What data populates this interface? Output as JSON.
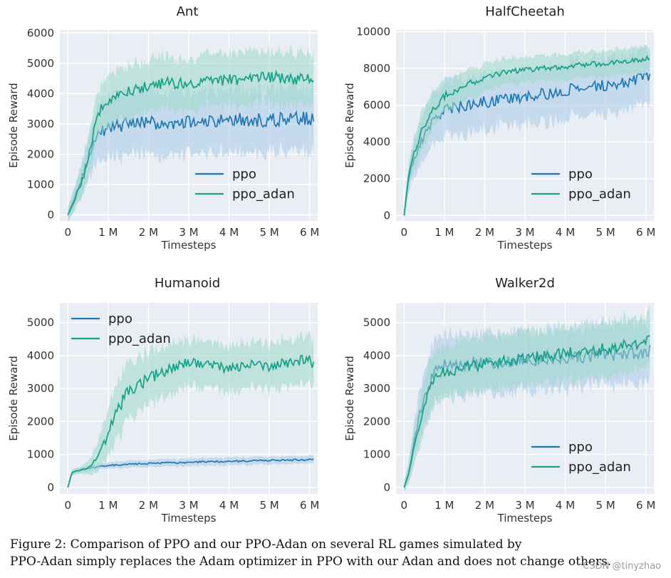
{
  "colors": {
    "ppo": "#1f77b4",
    "ppo_adan": "#17a085",
    "ppo_band": "#a9cbe6",
    "ppo_adan_band": "#9fd8c9"
  },
  "chart_data": [
    {
      "type": "line",
      "title": "Ant",
      "xlabel": "Timesteps",
      "ylabel": "Episode Reward",
      "xlim": [
        -0.2,
        6.2
      ],
      "ylim": [
        -200,
        6100
      ],
      "xticks": [
        0,
        1,
        2,
        3,
        4,
        5,
        6
      ],
      "xtick_labels": [
        "0",
        "1 M",
        "2 M",
        "3 M",
        "4 M",
        "5 M",
        "6 M"
      ],
      "yticks": [
        0,
        1000,
        2000,
        3000,
        4000,
        5000,
        6000
      ],
      "legend_position": "lower-right",
      "series": [
        {
          "name": "ppo",
          "x": [
            0,
            0.2,
            0.4,
            0.6,
            0.8,
            1.0,
            1.5,
            2.0,
            2.5,
            3.0,
            3.5,
            4.0,
            4.5,
            5.0,
            5.5,
            6.0,
            6.1
          ],
          "values": [
            0,
            700,
            1400,
            2300,
            2700,
            2850,
            3000,
            3050,
            3000,
            3050,
            3050,
            3100,
            3150,
            3100,
            3200,
            3200,
            3150
          ],
          "band": [
            250,
            400,
            600,
            800,
            900,
            1000,
            1050,
            1050,
            1050,
            1050,
            1050,
            1050,
            1050,
            1050,
            1050,
            1050,
            1050
          ]
        },
        {
          "name": "ppo_adan",
          "x": [
            0,
            0.2,
            0.4,
            0.6,
            0.8,
            1.0,
            1.5,
            2.0,
            2.5,
            3.0,
            3.5,
            4.0,
            4.5,
            5.0,
            5.5,
            6.0,
            6.1
          ],
          "values": [
            0,
            600,
            1300,
            2500,
            3500,
            3800,
            4100,
            4250,
            4350,
            4350,
            4400,
            4450,
            4500,
            4550,
            4500,
            4450,
            4400
          ],
          "band": [
            200,
            350,
            550,
            700,
            800,
            850,
            850,
            850,
            850,
            850,
            850,
            850,
            850,
            850,
            850,
            850,
            850
          ]
        }
      ]
    },
    {
      "type": "line",
      "title": "HalfCheetah",
      "xlabel": "Timesteps",
      "ylabel": "Episode Reward",
      "xlim": [
        -0.2,
        6.2
      ],
      "ylim": [
        -300,
        10100
      ],
      "xticks": [
        0,
        1,
        2,
        3,
        4,
        5,
        6
      ],
      "xtick_labels": [
        "0",
        "1 M",
        "2 M",
        "3 M",
        "4 M",
        "5 M",
        "6 M"
      ],
      "yticks": [
        0,
        2000,
        4000,
        6000,
        8000,
        10000
      ],
      "legend_position": "lower-right",
      "series": [
        {
          "name": "ppo",
          "x": [
            0,
            0.1,
            0.2,
            0.4,
            0.6,
            0.8,
            1.0,
            1.5,
            2.0,
            2.5,
            3.0,
            3.5,
            4.0,
            4.5,
            5.0,
            5.5,
            6.0,
            6.1
          ],
          "values": [
            0,
            1800,
            2800,
            3900,
            4800,
            5400,
            5700,
            6000,
            6200,
            6300,
            6500,
            6600,
            6800,
            7000,
            7100,
            7300,
            7500,
            7700
          ],
          "band": [
            300,
            600,
            900,
            1200,
            1300,
            1400,
            1500,
            1500,
            1500,
            1500,
            1500,
            1500,
            1500,
            1500,
            1500,
            1500,
            1500,
            1500
          ]
        },
        {
          "name": "ppo_adan",
          "x": [
            0,
            0.1,
            0.2,
            0.4,
            0.6,
            0.8,
            1.0,
            1.5,
            2.0,
            2.5,
            3.0,
            3.5,
            4.0,
            4.5,
            5.0,
            5.5,
            6.0,
            6.1
          ],
          "values": [
            0,
            2000,
            3100,
            4400,
            5300,
            6000,
            6500,
            7100,
            7500,
            7800,
            7900,
            8000,
            8100,
            8200,
            8300,
            8400,
            8500,
            8600
          ],
          "band": [
            250,
            500,
            800,
            1000,
            1000,
            1000,
            900,
            800,
            750,
            700,
            700,
            700,
            700,
            700,
            700,
            700,
            700,
            700
          ]
        }
      ]
    },
    {
      "type": "line",
      "title": "Humanoid",
      "xlabel": "Timesteps",
      "ylabel": "Episode Reward",
      "xlim": [
        -0.2,
        6.2
      ],
      "ylim": [
        -200,
        5600
      ],
      "xticks": [
        0,
        1,
        2,
        3,
        4,
        5,
        6
      ],
      "xtick_labels": [
        "0",
        "1 M",
        "2 M",
        "3 M",
        "4 M",
        "5 M",
        "6 M"
      ],
      "yticks": [
        0,
        1000,
        2000,
        3000,
        4000,
        5000
      ],
      "legend_position": "upper-left",
      "series": [
        {
          "name": "ppo",
          "x": [
            0,
            0.1,
            0.3,
            0.5,
            1.0,
            1.5,
            2.0,
            2.5,
            3.0,
            3.5,
            4.0,
            4.5,
            5.0,
            5.5,
            6.0,
            6.1
          ],
          "values": [
            0,
            450,
            530,
            580,
            660,
            700,
            720,
            740,
            760,
            780,
            790,
            800,
            820,
            830,
            840,
            850
          ],
          "band": [
            50,
            80,
            80,
            80,
            100,
            100,
            110,
            110,
            120,
            120,
            120,
            120,
            120,
            120,
            120,
            120
          ]
        },
        {
          "name": "ppo_adan",
          "x": [
            0,
            0.1,
            0.3,
            0.5,
            0.7,
            0.9,
            1.1,
            1.3,
            1.5,
            2.0,
            2.5,
            3.0,
            3.5,
            4.0,
            4.5,
            5.0,
            5.5,
            6.0,
            6.1
          ],
          "values": [
            0,
            450,
            530,
            600,
            800,
            1300,
            2000,
            2500,
            2900,
            3300,
            3600,
            3800,
            3700,
            3600,
            3750,
            3650,
            3800,
            3900,
            3700
          ],
          "band": [
            50,
            80,
            100,
            200,
            400,
            600,
            800,
            850,
            850,
            800,
            750,
            700,
            700,
            700,
            700,
            700,
            700,
            700,
            700
          ]
        }
      ]
    },
    {
      "type": "line",
      "title": "Walker2d",
      "xlabel": "Timesteps",
      "ylabel": "Episode Reward",
      "xlim": [
        -0.2,
        6.2
      ],
      "ylim": [
        -200,
        5600
      ],
      "xticks": [
        0,
        1,
        2,
        3,
        4,
        5,
        6
      ],
      "xtick_labels": [
        "0",
        "1 M",
        "2 M",
        "3 M",
        "4 M",
        "5 M",
        "6 M"
      ],
      "yticks": [
        0,
        1000,
        2000,
        3000,
        4000,
        5000
      ],
      "legend_position": "lower-right",
      "series": [
        {
          "name": "ppo",
          "x": [
            0,
            0.1,
            0.2,
            0.4,
            0.6,
            0.8,
            1.0,
            1.5,
            2.0,
            2.5,
            3.0,
            3.5,
            4.0,
            4.5,
            5.0,
            5.5,
            6.0,
            6.1
          ],
          "values": [
            0,
            400,
            1000,
            2300,
            3100,
            3500,
            3700,
            3750,
            3800,
            3800,
            3850,
            3900,
            3900,
            3950,
            4000,
            4050,
            4100,
            4150
          ],
          "band": [
            150,
            300,
            500,
            800,
            900,
            900,
            900,
            900,
            900,
            900,
            900,
            900,
            900,
            900,
            900,
            900,
            900,
            900
          ]
        },
        {
          "name": "ppo_adan",
          "x": [
            0,
            0.1,
            0.2,
            0.4,
            0.6,
            0.8,
            1.0,
            1.5,
            2.0,
            2.5,
            3.0,
            3.5,
            4.0,
            4.5,
            5.0,
            5.5,
            6.0,
            6.1
          ],
          "values": [
            0,
            350,
            900,
            2000,
            2900,
            3300,
            3500,
            3650,
            3750,
            3850,
            3900,
            4000,
            4050,
            4150,
            4200,
            4300,
            4400,
            4450
          ],
          "band": [
            150,
            250,
            450,
            700,
            800,
            800,
            800,
            800,
            800,
            800,
            800,
            800,
            800,
            800,
            800,
            800,
            800,
            800
          ]
        }
      ]
    }
  ],
  "caption": {
    "line1": "Figure 2: Comparison of PPO and our PPO-Adan on several RL games simulated by",
    "line2": "PPO-Adan simply replaces the Adam optimizer in PPO with our Adan and does not change others."
  },
  "watermark": "CSDN @tinyzhao"
}
